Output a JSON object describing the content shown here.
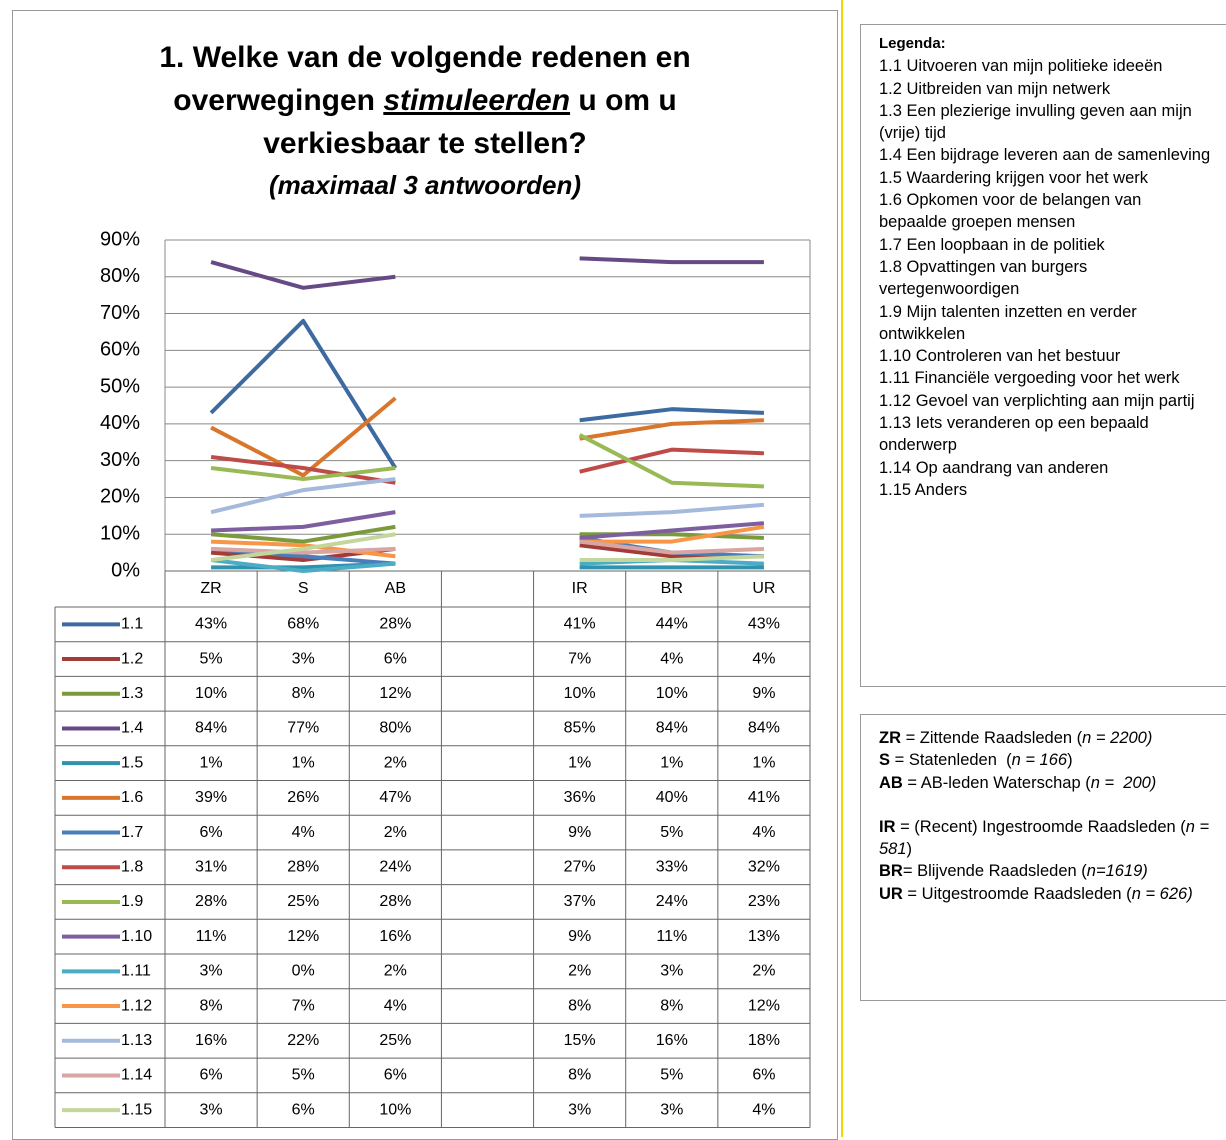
{
  "chart_data": {
    "type": "line",
    "title_parts": [
      "1. Welke van de volgende redenen en",
      "overwegingen",
      "stimuleerden",
      "u om u",
      "verkiesbaar te stellen?"
    ],
    "subtitle": "(maximaal 3 antwoorden)",
    "categories": [
      "ZR",
      "S",
      "AB",
      null,
      "IR",
      "BR",
      "UR"
    ],
    "ylim": [
      0,
      90
    ],
    "yticks": [
      {
        "value": 0,
        "label": "0%"
      },
      {
        "value": 10,
        "label": "10%"
      },
      {
        "value": 20,
        "label": "20%"
      },
      {
        "value": 30,
        "label": "30%"
      },
      {
        "value": 40,
        "label": "40%"
      },
      {
        "value": 50,
        "label": "50%"
      },
      {
        "value": 60,
        "label": "60%"
      },
      {
        "value": 70,
        "label": "70%"
      },
      {
        "value": 80,
        "label": "80%"
      },
      {
        "value": 90,
        "label": "90%"
      }
    ],
    "grid": true,
    "series": [
      {
        "name": "1.1",
        "color": "#3d6aa0",
        "values": [
          43,
          68,
          28,
          null,
          41,
          44,
          43
        ],
        "value_labels": [
          "43%",
          "68%",
          "28%",
          null,
          "41%",
          "44%",
          "43%"
        ]
      },
      {
        "name": "1.2",
        "color": "#a33b39",
        "values": [
          5,
          3,
          6,
          null,
          7,
          4,
          4
        ],
        "value_labels": [
          "5%",
          "3%",
          "6%",
          null,
          "7%",
          "4%",
          "4%"
        ]
      },
      {
        "name": "1.3",
        "color": "#7a9a3c",
        "values": [
          10,
          8,
          12,
          null,
          10,
          10,
          9
        ],
        "value_labels": [
          "10%",
          "8%",
          "12%",
          null,
          "10%",
          "10%",
          "9%"
        ]
      },
      {
        "name": "1.4",
        "color": "#664a86",
        "values": [
          84,
          77,
          80,
          null,
          85,
          84,
          84
        ],
        "value_labels": [
          "84%",
          "77%",
          "80%",
          null,
          "85%",
          "84%",
          "84%"
        ]
      },
      {
        "name": "1.5",
        "color": "#2f93ad",
        "values": [
          1,
          1,
          2,
          null,
          1,
          1,
          1
        ],
        "value_labels": [
          "1%",
          "1%",
          "2%",
          null,
          "1%",
          "1%",
          "1%"
        ]
      },
      {
        "name": "1.6",
        "color": "#d9762b",
        "values": [
          39,
          26,
          47,
          null,
          36,
          40,
          41
        ],
        "value_labels": [
          "39%",
          "26%",
          "47%",
          null,
          "36%",
          "40%",
          "41%"
        ]
      },
      {
        "name": "1.7",
        "color": "#4a7ebb",
        "values": [
          6,
          4,
          2,
          null,
          9,
          5,
          4
        ],
        "value_labels": [
          "6%",
          "4%",
          "2%",
          null,
          "9%",
          "5%",
          "4%"
        ]
      },
      {
        "name": "1.8",
        "color": "#be4b48",
        "values": [
          31,
          28,
          24,
          null,
          27,
          33,
          32
        ],
        "value_labels": [
          "31%",
          "28%",
          "24%",
          null,
          "27%",
          "33%",
          "32%"
        ]
      },
      {
        "name": "1.9",
        "color": "#98b954",
        "values": [
          28,
          25,
          28,
          null,
          37,
          24,
          23
        ],
        "value_labels": [
          "28%",
          "25%",
          "28%",
          null,
          "37%",
          "24%",
          "23%"
        ]
      },
      {
        "name": "1.10",
        "color": "#7d5fa0",
        "values": [
          11,
          12,
          16,
          null,
          9,
          11,
          13
        ],
        "value_labels": [
          "11%",
          "12%",
          "16%",
          null,
          "9%",
          "11%",
          "13%"
        ]
      },
      {
        "name": "1.11",
        "color": "#4bacc6",
        "values": [
          3,
          0,
          2,
          null,
          2,
          3,
          2
        ],
        "value_labels": [
          "3%",
          "0%",
          "2%",
          null,
          "2%",
          "3%",
          "2%"
        ]
      },
      {
        "name": "1.12",
        "color": "#f79646",
        "values": [
          8,
          7,
          4,
          null,
          8,
          8,
          12
        ],
        "value_labels": [
          "8%",
          "7%",
          "4%",
          null,
          "8%",
          "8%",
          "12%"
        ]
      },
      {
        "name": "1.13",
        "color": "#a5b9dc",
        "values": [
          16,
          22,
          25,
          null,
          15,
          16,
          18
        ],
        "value_labels": [
          "16%",
          "22%",
          "25%",
          null,
          "15%",
          "16%",
          "18%"
        ]
      },
      {
        "name": "1.14",
        "color": "#d9a5a3",
        "values": [
          6,
          5,
          6,
          null,
          8,
          5,
          6
        ],
        "value_labels": [
          "6%",
          "5%",
          "6%",
          null,
          "8%",
          "5%",
          "6%"
        ]
      },
      {
        "name": "1.15",
        "color": "#c3d69b",
        "values": [
          3,
          6,
          10,
          null,
          3,
          3,
          4
        ],
        "value_labels": [
          "3%",
          "6%",
          "10%",
          null,
          "3%",
          "3%",
          "4%"
        ]
      }
    ]
  },
  "legend_box": {
    "heading": "Legenda:",
    "items": [
      "1.1 Uitvoeren van mijn politieke ideeën",
      "1.2 Uitbreiden van mijn netwerk",
      "1.3 Een plezierige invulling geven aan mijn (vrije) tijd",
      "1.4 Een bijdrage leveren aan de samenleving",
      "1.5 Waardering krijgen voor het werk",
      "1.6 Opkomen voor de belangen van bepaalde groepen mensen",
      "1.7  Een loopbaan in de politiek",
      "1.8 Opvattingen van burgers vertegenwoordigen",
      "1.9 Mijn talenten inzetten en verder ontwikkelen",
      "1.10 Controleren van het bestuur",
      "1.11 Financiële vergoeding voor het werk",
      "1.12 Gevoel van verplichting aan mijn partij",
      "1.13 Iets veranderen op een bepaald onderwerp",
      "1.14 Op aandrang van anderen",
      "1.15 Anders"
    ]
  },
  "definitions": [
    {
      "abbr": "ZR",
      "text": " = Zittende Raadsleden (",
      "n": "n = 2200)"
    },
    {
      "abbr": "S",
      "text": " = Statenleden  (",
      "n": "n = 166",
      "after": ")"
    },
    {
      "abbr": "AB",
      "text": " = AB-leden Waterschap (",
      "n": "n =  200)"
    },
    {
      "abbr": "IR",
      "text": " = (Recent) Ingestroomde Raadsleden (",
      "n": "n = 581",
      "after": ")"
    },
    {
      "abbr": "BR",
      "text": "= Blijvende Raadsleden (",
      "n": "n=1619)"
    },
    {
      "abbr": "UR",
      "text": " = Uitgestroomde Raadsleden (",
      "n": "n = 626)"
    }
  ]
}
